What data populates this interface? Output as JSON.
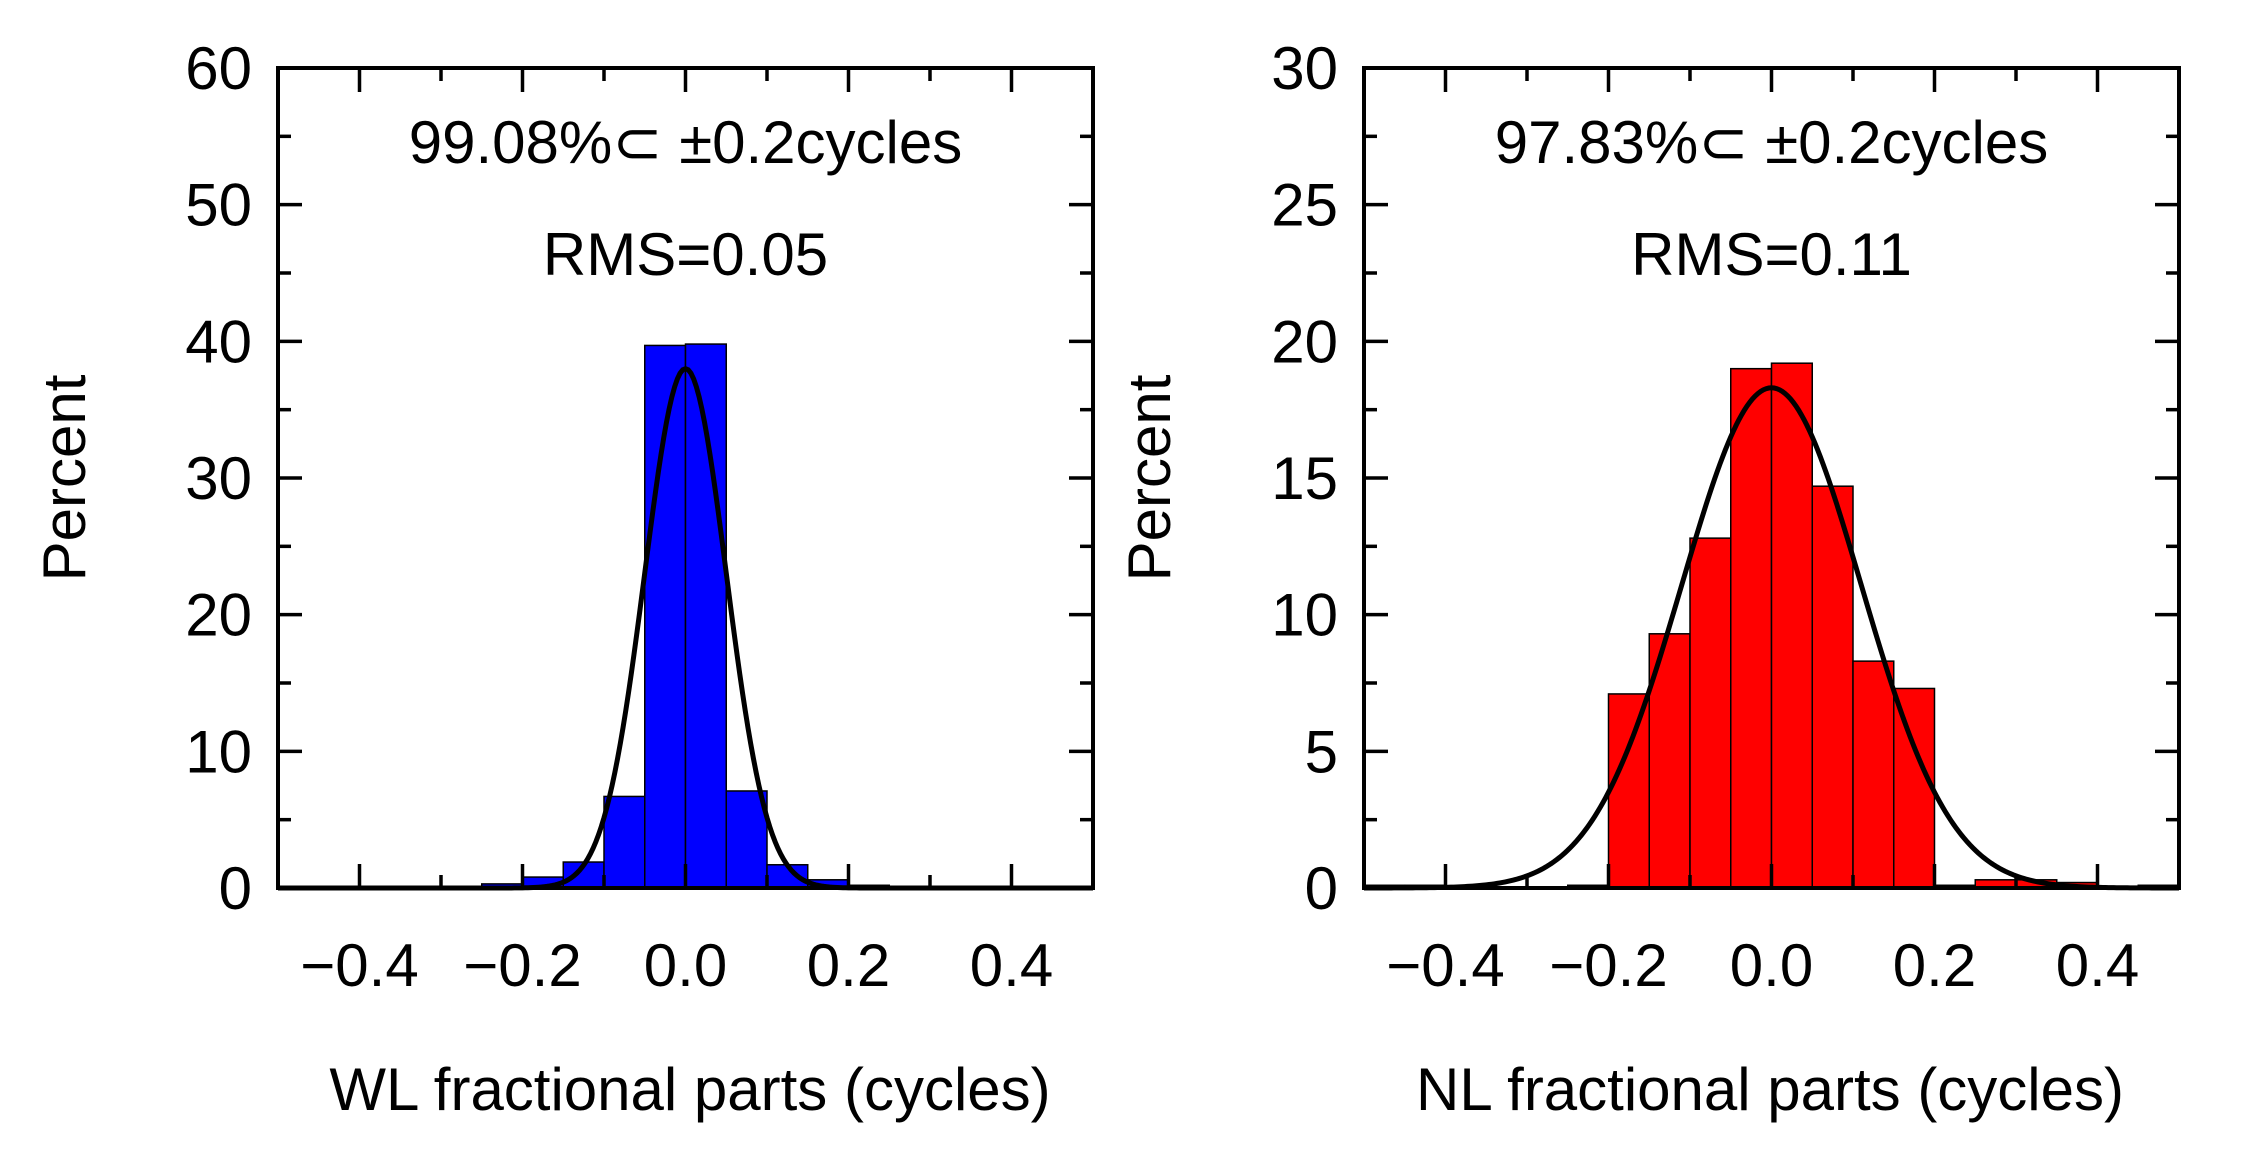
{
  "chart_data": [
    {
      "type": "bar",
      "panel": "left",
      "title": "",
      "annotations": [
        "99.08%⊂ ±0.2cycles",
        "RMS=0.05"
      ],
      "xlabel": "WL fractional parts (cycles)",
      "ylabel": "Percent",
      "xlim": [
        -0.5,
        0.5
      ],
      "ylim": [
        0,
        60
      ],
      "xticks": [
        -0.4,
        -0.2,
        0.0,
        0.2,
        0.4
      ],
      "xtick_labels": [
        "−0.4",
        "−0.2",
        "0.0",
        "0.2",
        "0.4"
      ],
      "yticks": [
        0,
        10,
        20,
        30,
        40,
        50,
        60
      ],
      "ytick_labels": [
        "0",
        "10",
        "20",
        "30",
        "40",
        "50",
        "60"
      ],
      "bin_width": 0.05,
      "bins": [
        -0.25,
        -0.2,
        -0.15,
        -0.1,
        -0.05,
        0.0,
        0.05,
        0.1,
        0.15,
        0.2
      ],
      "values": [
        0.3,
        0.8,
        1.9,
        6.7,
        39.7,
        39.8,
        7.1,
        1.7,
        0.6,
        0.2
      ],
      "bar_color": "#0000ff",
      "fit_curve": {
        "type": "gaussian",
        "mean": 0.0,
        "sigma": 0.05,
        "peak": 38
      }
    },
    {
      "type": "bar",
      "panel": "right",
      "title": "",
      "annotations": [
        "97.83%⊂ ±0.2cycles",
        "RMS=0.11"
      ],
      "xlabel": "NL fractional parts (cycles)",
      "ylabel": "Percent",
      "xlim": [
        -0.5,
        0.5
      ],
      "ylim": [
        0,
        30
      ],
      "xticks": [
        -0.4,
        -0.2,
        0.0,
        0.2,
        0.4
      ],
      "xtick_labels": [
        "−0.4",
        "−0.2",
        "0.0",
        "0.2",
        "0.4"
      ],
      "yticks": [
        0,
        5,
        10,
        15,
        20,
        25,
        30
      ],
      "ytick_labels": [
        "0",
        "5",
        "10",
        "15",
        "20",
        "25",
        "30"
      ],
      "bin_width": 0.05,
      "bins": [
        -0.5,
        -0.45,
        -0.25,
        -0.2,
        -0.15,
        -0.1,
        -0.05,
        0.0,
        0.05,
        0.1,
        0.15,
        0.2,
        0.25,
        0.3,
        0.35,
        0.45
      ],
      "values": [
        0.1,
        0.1,
        0.1,
        7.1,
        9.3,
        12.8,
        19.0,
        19.2,
        14.7,
        8.3,
        7.3,
        0.1,
        0.3,
        0.3,
        0.2,
        0.1
      ],
      "bar_color": "#ff0000",
      "fit_curve": {
        "type": "gaussian",
        "mean": 0.0,
        "sigma": 0.11,
        "peak": 18.3
      }
    }
  ]
}
